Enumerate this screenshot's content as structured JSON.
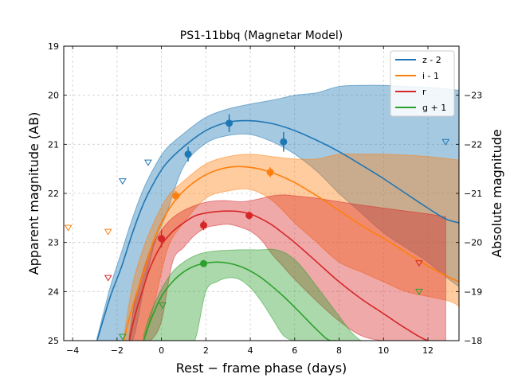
{
  "chart_data": {
    "type": "line",
    "title": "PS1-11bbq (Magnetar Model)",
    "xlabel": "Rest − frame phase (days)",
    "ylabel_left": "Apparent magnitude (AB)",
    "ylabel_right": "Absolute magnitude",
    "xlim": [
      -4.4,
      13.4
    ],
    "ylim": [
      25,
      19
    ],
    "right_ylim": [
      -18,
      -24
    ],
    "x_ticks": [
      -4,
      -2,
      0,
      2,
      4,
      6,
      8,
      10,
      12
    ],
    "x_tick_labels": [
      "−4",
      "−2",
      "0",
      "2",
      "4",
      "6",
      "8",
      "10",
      "12"
    ],
    "y_ticks": [
      19,
      20,
      21,
      22,
      23,
      24,
      25
    ],
    "y_tick_labels": [
      "19",
      "20",
      "21",
      "22",
      "23",
      "24",
      "25"
    ],
    "right_y_ticks": [
      -18,
      -19,
      -20,
      -21,
      -22,
      -23
    ],
    "right_y_tick_labels": [
      "−18",
      "−19",
      "−20",
      "−21",
      "−22",
      "−23"
    ],
    "grid": true,
    "legend_position": "top-right",
    "series": [
      {
        "name": "z - 2",
        "color": "#1f77b4",
        "model_x": [
          -2.9,
          -2.3,
          -1.8,
          -1.3,
          -0.8,
          -0.3,
          0.2,
          1.0,
          2.0,
          3.0,
          4.0,
          5.0,
          6.0,
          7.0,
          8.0,
          9.0,
          10.0,
          11.0,
          12.0,
          12.8,
          13.4
        ],
        "model_y": [
          25.0,
          24.1,
          23.5,
          22.8,
          22.2,
          21.75,
          21.4,
          21.05,
          20.72,
          20.55,
          20.52,
          20.58,
          20.72,
          20.92,
          21.15,
          21.42,
          21.7,
          22.0,
          22.3,
          22.52,
          22.6
        ],
        "band_upper": [
          24.95,
          23.9,
          23.2,
          22.5,
          21.9,
          21.45,
          21.1,
          20.78,
          20.45,
          20.28,
          20.18,
          20.1,
          20.0,
          19.95,
          19.82,
          19.8,
          19.8,
          19.82,
          19.84,
          19.87,
          19.9
        ],
        "band_lower": [
          25.0,
          25.0,
          25.0,
          25.0,
          23.95,
          23.0,
          22.45,
          21.45,
          20.98,
          20.82,
          20.8,
          20.95,
          21.2,
          21.55,
          22.0,
          22.4,
          22.8,
          23.1,
          23.4,
          23.7,
          23.9
        ],
        "detections": [
          {
            "x": 1.2,
            "y": 21.2,
            "err": 0.15
          },
          {
            "x": 3.05,
            "y": 20.57,
            "err": 0.18
          },
          {
            "x": 5.5,
            "y": 20.95,
            "err": 0.2
          }
        ],
        "upper_limits": [
          {
            "x": -1.75,
            "y": 21.75
          },
          {
            "x": -0.6,
            "y": 21.37
          },
          {
            "x": 12.8,
            "y": 20.95
          }
        ]
      },
      {
        "name": "i - 1",
        "color": "#ff7f0e",
        "model_x": [
          -1.7,
          -1.3,
          -0.8,
          -0.3,
          0.3,
          1.0,
          2.0,
          3.0,
          4.0,
          5.0,
          6.0,
          7.0,
          8.0,
          9.0,
          10.0,
          11.0,
          12.0,
          13.0,
          13.4
        ],
        "model_y": [
          25.0,
          24.3,
          23.6,
          22.9,
          22.35,
          21.95,
          21.62,
          21.47,
          21.47,
          21.58,
          21.78,
          22.05,
          22.35,
          22.65,
          22.92,
          23.2,
          23.48,
          23.72,
          23.8
        ],
        "band_upper": [
          24.95,
          23.85,
          23.1,
          22.55,
          22.05,
          21.75,
          21.4,
          21.25,
          21.2,
          21.25,
          21.3,
          21.3,
          21.2,
          21.2,
          21.2,
          21.22,
          21.25,
          21.3,
          21.32
        ],
        "band_lower": [
          25.0,
          25.0,
          25.0,
          24.2,
          23.1,
          22.6,
          22.1,
          21.95,
          21.92,
          22.15,
          22.6,
          23.0,
          23.4,
          23.6,
          23.8,
          24.0,
          24.1,
          24.2,
          24.3
        ],
        "detections": [
          {
            "x": 0.65,
            "y": 22.05,
            "err": 0.1
          },
          {
            "x": 4.9,
            "y": 21.57,
            "err": 0.1
          }
        ],
        "upper_limits": [
          {
            "x": -4.2,
            "y": 22.7
          },
          {
            "x": -2.4,
            "y": 22.78
          }
        ]
      },
      {
        "name": "r",
        "color": "#d62728",
        "model_x": [
          -1.45,
          -1.2,
          -0.9,
          -0.5,
          0.0,
          0.5,
          1.0,
          1.5,
          2.0,
          2.5,
          3.0,
          3.5,
          4.0,
          4.5,
          5.0,
          5.5,
          6.0,
          7.0,
          8.0,
          9.0,
          10.0,
          11.0,
          12.0,
          12.8
        ],
        "model_y": [
          25.0,
          24.5,
          24.05,
          23.5,
          23.05,
          22.78,
          22.6,
          22.46,
          22.4,
          22.37,
          22.36,
          22.37,
          22.42,
          22.52,
          22.65,
          22.82,
          23.0,
          23.4,
          23.8,
          24.15,
          24.45,
          24.75,
          25.0,
          25.0
        ],
        "band_upper": [
          24.9,
          24.2,
          23.7,
          23.15,
          22.75,
          22.5,
          22.35,
          22.25,
          22.18,
          22.15,
          22.15,
          22.17,
          22.15,
          22.1,
          22.05,
          22.03,
          22.05,
          22.1,
          22.17,
          22.24,
          22.3,
          22.36,
          22.42,
          22.48
        ],
        "band_lower": [
          25.0,
          25.0,
          25.0,
          25.0,
          24.6,
          23.4,
          23.1,
          22.85,
          22.7,
          22.65,
          22.63,
          22.68,
          22.77,
          22.95,
          23.25,
          23.5,
          23.75,
          24.2,
          24.6,
          24.9,
          25.0,
          25.0,
          25.0,
          25.0
        ],
        "detections": [
          {
            "x": 0.0,
            "y": 22.92,
            "err": 0.18
          },
          {
            "x": 1.9,
            "y": 22.65,
            "err": 0.1
          },
          {
            "x": 3.95,
            "y": 22.45,
            "err": 0.08
          }
        ],
        "upper_limits": [
          {
            "x": -2.4,
            "y": 23.72
          },
          {
            "x": 11.6,
            "y": 23.42
          }
        ]
      },
      {
        "name": "g + 1",
        "color": "#2ca02c",
        "model_x": [
          -0.8,
          -0.5,
          0.0,
          0.5,
          1.0,
          1.5,
          2.0,
          2.5,
          3.0,
          3.5,
          4.0,
          4.5,
          5.0,
          5.5,
          6.0,
          6.5,
          7.0,
          7.5,
          7.9
        ],
        "model_y": [
          25.0,
          24.6,
          24.1,
          23.8,
          23.6,
          23.48,
          23.42,
          23.4,
          23.42,
          23.48,
          23.58,
          23.72,
          23.9,
          24.1,
          24.32,
          24.55,
          24.78,
          24.98,
          25.0
        ],
        "band_upper": [
          24.9,
          24.45,
          23.95,
          23.6,
          23.4,
          23.27,
          23.2,
          23.17,
          23.16,
          23.15,
          23.15,
          23.15,
          23.14,
          23.2,
          23.35,
          23.6,
          23.9,
          24.2,
          24.5,
          24.8,
          25.0,
          25.0
        ],
        "band_upper_x": [
          -0.8,
          -0.5,
          0.0,
          0.5,
          1.0,
          1.5,
          2.0,
          2.5,
          3.0,
          3.5,
          4.0,
          4.5,
          5.0,
          5.5,
          6.0,
          6.5,
          7.0,
          7.5,
          8.0,
          8.5,
          9.0,
          9.5
        ],
        "band_lower": [
          25.0,
          25.0,
          25.0,
          25.0,
          25.0,
          25.0,
          24.0,
          23.8,
          23.72,
          23.75,
          23.92,
          24.2,
          24.55,
          24.9,
          25.0,
          25.0,
          25.0,
          25.0,
          25.0,
          25.0,
          25.0,
          25.0
        ],
        "detections": [
          {
            "x": 1.9,
            "y": 23.43,
            "err": 0.07
          }
        ],
        "upper_limits": [
          {
            "x": -1.75,
            "y": 24.92
          },
          {
            "x": 0.05,
            "y": 24.28
          },
          {
            "x": 11.6,
            "y": 24.0
          }
        ]
      }
    ]
  }
}
